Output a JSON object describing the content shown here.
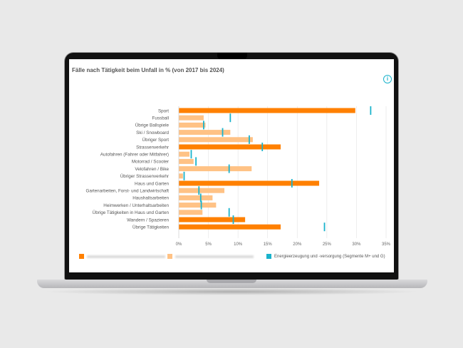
{
  "title": "Fälle nach Tätigkeit beim Unfall in % (von 2017 bis 2024)",
  "info_icon": "i",
  "chart_data": {
    "type": "bar",
    "orientation": "horizontal",
    "title": "Fälle nach Tätigkeit beim Unfall in % (von 2017 bis 2024)",
    "categories": [
      "Sport",
      "Fussball",
      "Übrige Ballspiele",
      "Ski / Snowboard",
      "Übriger Sport",
      "Strassenverkehr",
      "Autofahren (Fahrer oder Mitfahrer)",
      "Motorrad / Scooter",
      "Velofahren / Bike",
      "Übriger Strassenverkehr",
      "Haus und Garten",
      "Gartenarbeiten, Forst- und Landwirtschaft",
      "Haushaltsarbeiten",
      "Heimwerken / Unterhaltsarbeiten",
      "Übrige Tätigkeiten in Haus und Garten",
      "Wandern / Spazieren",
      "Übrige Tätigkeiten"
    ],
    "main_category": [
      true,
      false,
      false,
      false,
      false,
      true,
      false,
      false,
      false,
      false,
      true,
      false,
      false,
      false,
      false,
      true,
      true
    ],
    "bar_values": [
      29.8,
      4.2,
      4.5,
      8.7,
      12.5,
      17.2,
      1.8,
      2.5,
      12.3,
      0.7,
      23.7,
      7.7,
      5.7,
      6.3,
      4.0,
      11.2,
      17.2
    ],
    "marker_values": [
      32.4,
      8.7,
      4.2,
      7.4,
      11.9,
      14.1,
      2.1,
      2.9,
      8.5,
      0.9,
      19.1,
      3.4,
      3.7,
      3.8,
      8.5,
      9.2,
      24.6
    ],
    "xlim": [
      0,
      35
    ],
    "xticks": [
      "0%",
      "5%",
      "10%",
      "15%",
      "20%",
      "25%",
      "30%",
      "35%"
    ],
    "grid": true,
    "legend": [
      {
        "label": "",
        "color": "#ff8000"
      },
      {
        "label": "",
        "color": "#ffc285"
      },
      {
        "label": "Energieerzeugung und -versorgung (Segmente M+ und G)",
        "color": "#1ab3cc"
      }
    ],
    "legend_position": "bottom"
  }
}
